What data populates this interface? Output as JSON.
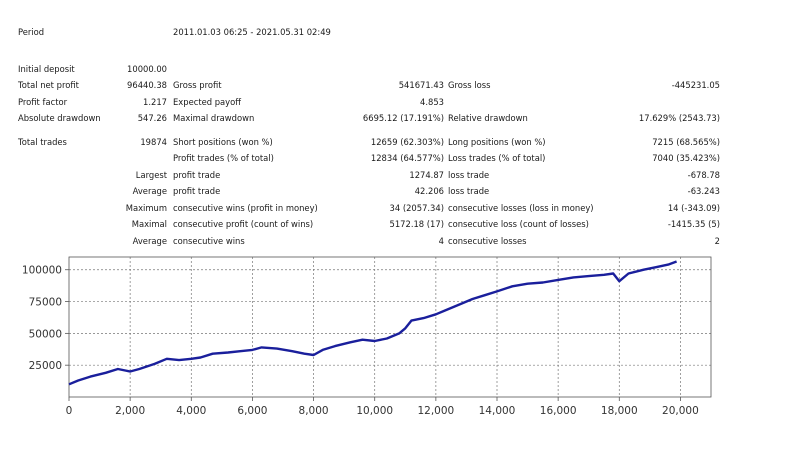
{
  "report": {
    "period_label": "Period",
    "period_value": "2011.01.03 06:25 - 2021.05.31 02:49",
    "initial_deposit_label": "Initial deposit",
    "initial_deposit_value": "10000.00",
    "total_net_profit_label": "Total net profit",
    "total_net_profit_value": "96440.38",
    "gross_profit_label": "Gross profit",
    "gross_profit_value": "541671.43",
    "gross_loss_label": "Gross loss",
    "gross_loss_value": "-445231.05",
    "profit_factor_label": "Profit factor",
    "profit_factor_value": "1.217",
    "expected_payoff_label": "Expected payoff",
    "expected_payoff_value": "4.853",
    "absolute_drawdown_label": "Absolute drawdown",
    "absolute_drawdown_value": "547.26",
    "maximal_drawdown_label": "Maximal drawdown",
    "maximal_drawdown_value": "6695.12 (17.191%)",
    "relative_drawdown_label": "Relative drawdown",
    "relative_drawdown_value": "17.629% (2543.73)",
    "total_trades_label": "Total trades",
    "total_trades_value": "19874",
    "short_positions_label": "Short positions (won %)",
    "short_positions_value": "12659 (62.303%)",
    "long_positions_label": "Long positions (won %)",
    "long_positions_value": "7215 (68.565%)",
    "profit_trades_label": "Profit trades (% of total)",
    "profit_trades_value": "12834 (64.577%)",
    "loss_trades_label": "Loss trades (% of total)",
    "loss_trades_value": "7040 (35.423%)",
    "largest_label": "Largest",
    "largest_profit_label": "profit trade",
    "largest_profit_value": "1274.87",
    "largest_loss_label": "loss trade",
    "largest_loss_value": "-678.78",
    "average_label": "Average",
    "average_profit_label": "profit trade",
    "average_profit_value": "42.206",
    "average_loss_label": "loss trade",
    "average_loss_value": "-63.243",
    "maximum_label": "Maximum",
    "max_consec_wins_label": "consecutive wins (profit in money)",
    "max_consec_wins_value": "34 (2057.34)",
    "max_consec_losses_label": "consecutive losses (loss in money)",
    "max_consec_losses_value": "14 (-343.09)",
    "maximal_label": "Maximal",
    "maximal_consec_profit_label": "consecutive profit (count of wins)",
    "maximal_consec_profit_value": "5172.18 (17)",
    "maximal_consec_loss_label": "consecutive loss (count of losses)",
    "maximal_consec_loss_value": "-1415.35 (5)",
    "average2_label": "Average",
    "avg_consec_wins_label": "consecutive wins",
    "avg_consec_wins_value": "4",
    "avg_consec_losses_label": "consecutive losses",
    "avg_consec_losses_value": "2"
  },
  "chart_data": {
    "type": "line",
    "title": "",
    "xlabel": "",
    "ylabel": "",
    "xlim": [
      0,
      21000
    ],
    "ylim": [
      0,
      110000
    ],
    "grid": true,
    "line_color": "#1a1f9c",
    "x_ticks": [
      0,
      2000,
      4000,
      6000,
      8000,
      10000,
      12000,
      14000,
      16000,
      18000,
      20000
    ],
    "x_tick_labels": [
      "0",
      "2,000",
      "4,000",
      "6,000",
      "8,000",
      "10,000",
      "12,000",
      "14,000",
      "16,000",
      "18,000",
      "20,000"
    ],
    "y_ticks": [
      25000,
      50000,
      75000,
      100000
    ],
    "y_tick_labels": [
      "25000",
      "50000",
      "75000",
      "100000"
    ],
    "series": [
      {
        "x": [
          0,
          300,
          700,
          1200,
          1600,
          2000,
          2300,
          2800,
          3200,
          3600,
          4000,
          4300,
          4700,
          5200,
          5600,
          6000,
          6300,
          6800,
          7300,
          7700,
          8000,
          8300,
          8700,
          9200,
          9600,
          10000,
          10400,
          10800,
          11000,
          11200,
          11600,
          12000,
          12300,
          12800,
          13200,
          13600,
          14000,
          14500,
          15000,
          15500,
          16000,
          16500,
          17000,
          17500,
          17800,
          18000,
          18300,
          18800,
          19200,
          19600,
          19874
        ],
        "y": [
          10000,
          13000,
          16000,
          19000,
          22000,
          20000,
          22000,
          26000,
          30000,
          29000,
          30000,
          31000,
          34000,
          35000,
          36000,
          37000,
          39000,
          38000,
          36000,
          34000,
          33000,
          37000,
          40000,
          43000,
          45000,
          44000,
          46000,
          50000,
          54000,
          60000,
          62000,
          65000,
          68000,
          73000,
          77000,
          80000,
          83000,
          87000,
          89000,
          90000,
          92000,
          94000,
          95000,
          96000,
          97000,
          91000,
          97000,
          100000,
          102000,
          104000,
          106500
        ]
      }
    ]
  }
}
